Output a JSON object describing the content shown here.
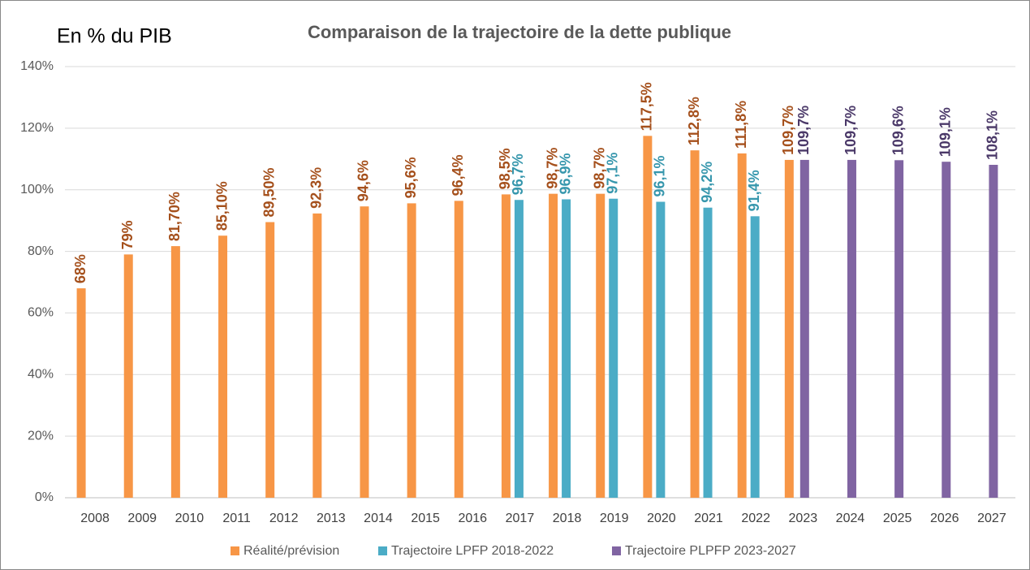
{
  "chart_data": {
    "type": "bar",
    "title": "Comparaison de la trajectoire de la dette publique",
    "annotation": "En % du PIB",
    "categories": [
      "2008",
      "2009",
      "2010",
      "2011",
      "2012",
      "2013",
      "2014",
      "2015",
      "2016",
      "2017",
      "2018",
      "2019",
      "2020",
      "2021",
      "2022",
      "2023",
      "2024",
      "2025",
      "2026",
      "2027"
    ],
    "series": [
      {
        "name": "Réalité/prévision",
        "color": "#f79646",
        "label_color": "#a5501c",
        "values": [
          68,
          79,
          81.7,
          85.1,
          89.5,
          92.3,
          94.6,
          95.6,
          96.4,
          98.5,
          98.7,
          98.7,
          117.5,
          112.8,
          111.8,
          109.7,
          null,
          null,
          null,
          null
        ],
        "value_labels": [
          "68%",
          "79%",
          "81,70%",
          "85,10%",
          "89,50%",
          "92,3%",
          "94,6%",
          "95,6%",
          "96,4%",
          "98,5%",
          "98,7%",
          "98,7%",
          "117,5%",
          "112,8%",
          "111,8%",
          "109,7%",
          null,
          null,
          null,
          null
        ]
      },
      {
        "name": "Trajectoire LPFP 2018-2022",
        "color": "#4bacc6",
        "label_color": "#3797ad",
        "values": [
          null,
          null,
          null,
          null,
          null,
          null,
          null,
          null,
          null,
          96.7,
          96.9,
          97.1,
          96.1,
          94.2,
          91.4,
          null,
          null,
          null,
          null,
          null
        ],
        "value_labels": [
          null,
          null,
          null,
          null,
          null,
          null,
          null,
          null,
          null,
          "96,7%",
          "96,9%",
          "97,1%",
          "96,1%",
          "94,2%",
          "91,4%",
          null,
          null,
          null,
          null,
          null
        ]
      },
      {
        "name": "Trajectoire PLPFP 2023-2027",
        "color": "#8064a2",
        "label_color": "#4a3868",
        "values": [
          null,
          null,
          null,
          null,
          null,
          null,
          null,
          null,
          null,
          null,
          null,
          null,
          null,
          null,
          null,
          109.7,
          109.7,
          109.6,
          109.1,
          108.1
        ],
        "value_labels": [
          null,
          null,
          null,
          null,
          null,
          null,
          null,
          null,
          null,
          null,
          null,
          null,
          null,
          null,
          null,
          "109,7%",
          "109,7%",
          "109,6%",
          "109,1%",
          "108,1%"
        ]
      }
    ],
    "ylim": [
      0,
      140
    ],
    "yticks": [
      {
        "value": 0,
        "label": "0%"
      },
      {
        "value": 20,
        "label": "20%"
      },
      {
        "value": 40,
        "label": "40%"
      },
      {
        "value": 60,
        "label": "60%"
      },
      {
        "value": 80,
        "label": "80%"
      },
      {
        "value": 100,
        "label": "100%"
      },
      {
        "value": 120,
        "label": "120%"
      },
      {
        "value": 140,
        "label": "140%"
      }
    ],
    "grid": true,
    "legend": "bottom"
  }
}
